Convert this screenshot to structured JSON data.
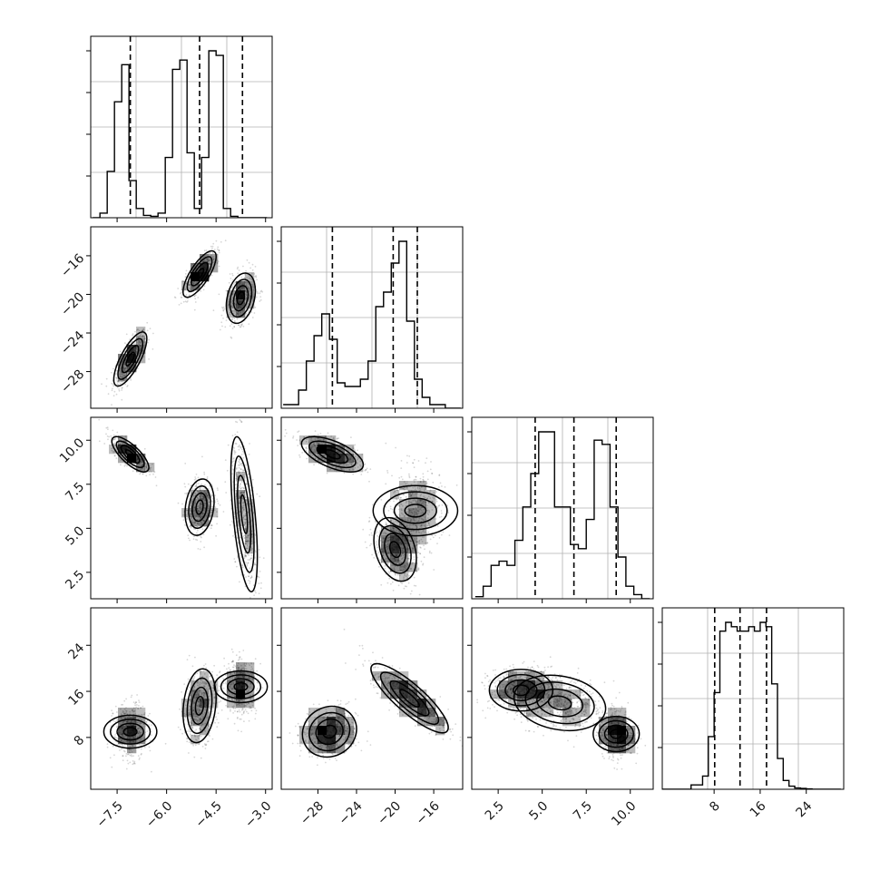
{
  "chart_data": {
    "type": "corner",
    "grid": true,
    "n_params": 4,
    "histograms": [
      {
        "param_index": 0,
        "bins": [
          -8.24,
          -8.02,
          -7.8,
          -7.58,
          -7.36,
          -7.14,
          -6.92,
          -6.7,
          -6.48,
          -6.26,
          -6.04,
          -5.82,
          -5.6,
          -5.38,
          -5.16,
          -4.94,
          -4.72,
          -4.5,
          -4.28,
          -4.06,
          -3.84,
          -3.62,
          -3.4,
          -3.18,
          -2.96
        ],
        "counts": [
          0,
          1,
          10,
          25,
          33,
          8,
          2,
          0.5,
          0.3,
          1,
          13,
          32,
          34,
          14,
          2,
          13,
          36,
          35,
          2,
          0.3,
          0,
          0,
          0,
          0
        ],
        "quantiles": [
          -7.1,
          -5.0,
          -3.7
        ]
      },
      {
        "param_index": 1,
        "bins": [
          -31.6,
          -30.8,
          -30.0,
          -29.2,
          -28.4,
          -27.6,
          -26.8,
          -26.0,
          -25.2,
          -24.4,
          -23.6,
          -22.8,
          -22.0,
          -21.2,
          -20.4,
          -19.6,
          -18.8,
          -18.0,
          -17.2,
          -16.4,
          -15.6,
          -14.8,
          -14.0,
          -13.2
        ],
        "counts": [
          1,
          1,
          5,
          13,
          20,
          26,
          19,
          7,
          6,
          6,
          8,
          13,
          28,
          32,
          40,
          46,
          24,
          8,
          3,
          1,
          1,
          0,
          0
        ],
        "quantiles": [
          -26.5,
          -20.2,
          -17.7
        ]
      },
      {
        "param_index": 2,
        "bins": [
          1.2,
          1.65,
          2.1,
          2.55,
          3.0,
          3.45,
          3.9,
          4.35,
          4.8,
          5.25,
          5.7,
          6.15,
          6.6,
          7.05,
          7.5,
          7.95,
          8.4,
          8.85,
          9.3,
          9.75,
          10.2,
          10.65,
          11.1
        ],
        "counts": [
          0.5,
          3,
          8,
          9,
          8,
          14,
          22,
          30,
          40,
          40,
          22,
          22,
          13,
          12,
          19,
          38,
          37,
          22,
          10,
          3,
          1,
          0
        ],
        "quantiles": [
          4.6,
          6.8,
          9.2
        ]
      },
      {
        "param_index": 3,
        "bins": [
          -1,
          0,
          1,
          2,
          3,
          4,
          5,
          6,
          7,
          8,
          9,
          10,
          11,
          12,
          13,
          14,
          15,
          16,
          17,
          18,
          19,
          20,
          21,
          22,
          23,
          24,
          25,
          26,
          27,
          28,
          29,
          30
        ],
        "counts": [
          0,
          0,
          0,
          0,
          0,
          1,
          1,
          3,
          12,
          22,
          36,
          38,
          37,
          36,
          36,
          37,
          36,
          38,
          37,
          24,
          7,
          2,
          0.7,
          0.3,
          0.2,
          0.1,
          0,
          0,
          0,
          0,
          0
        ],
        "quantiles": [
          8.1,
          12.5,
          17.1
        ]
      }
    ],
    "scatter_2d": [
      {
        "x_param": 0,
        "y_param": 1,
        "clusters": [
          {
            "cx": -7.1,
            "cy": -26.7,
            "sx": 0.25,
            "sy": 1.4,
            "rho": 0.75
          },
          {
            "cx": -5.0,
            "cy": -17.9,
            "sx": 0.25,
            "sy": 1.2,
            "rho": 0.75
          },
          {
            "cx": -3.75,
            "cy": -20.4,
            "sx": 0.22,
            "sy": 1.3,
            "rho": 0.3
          }
        ]
      },
      {
        "x_param": 0,
        "y_param": 2,
        "clusters": [
          {
            "cx": -7.1,
            "cy": 9.2,
            "sx": 0.28,
            "sy": 0.5,
            "rho": -0.75
          },
          {
            "cx": -5.0,
            "cy": 6.2,
            "sx": 0.22,
            "sy": 0.8,
            "rho": 0.2
          },
          {
            "cx": -3.65,
            "cy": 5.8,
            "sx": 0.2,
            "sy": 2.2,
            "rho": -0.55
          }
        ]
      },
      {
        "x_param": 0,
        "y_param": 3,
        "clusters": [
          {
            "cx": -7.1,
            "cy": 9.0,
            "sx": 0.25,
            "sy": 2.3,
            "rho": 0.0
          },
          {
            "cx": -5.0,
            "cy": 13.5,
            "sx": 0.25,
            "sy": 3.2,
            "rho": 0.2
          },
          {
            "cx": -3.75,
            "cy": 16.8,
            "sx": 0.24,
            "sy": 2.3,
            "rho": 0.0
          }
        ]
      },
      {
        "x_param": 1,
        "y_param": 2,
        "clusters": [
          {
            "cx": -26.5,
            "cy": 9.2,
            "sx": 1.6,
            "sy": 0.5,
            "rho": -0.6
          },
          {
            "cx": -17.9,
            "cy": 6.0,
            "sx": 1.3,
            "sy": 1.2,
            "rho": 0.0
          },
          {
            "cx": -20.0,
            "cy": 3.8,
            "sx": 1.1,
            "sy": 0.9,
            "rho": -0.3
          }
        ]
      },
      {
        "x_param": 1,
        "y_param": 3,
        "clusters": [
          {
            "cx": -26.8,
            "cy": 9.0,
            "sx": 1.4,
            "sy": 2.2,
            "rho": 0.1
          },
          {
            "cx": -18.5,
            "cy": 14.8,
            "sx": 2.0,
            "sy": 3.0,
            "rho": -0.85
          }
        ]
      },
      {
        "x_param": 2,
        "y_param": 3,
        "clusters": [
          {
            "cx": 9.2,
            "cy": 8.6,
            "sx": 0.5,
            "sy": 2.0,
            "rho": 0.0
          },
          {
            "cx": 6.0,
            "cy": 14.0,
            "sx": 1.3,
            "sy": 2.4,
            "rho": -0.2
          },
          {
            "cx": 3.8,
            "cy": 16.2,
            "sx": 0.9,
            "sy": 1.8,
            "rho": 0.0
          }
        ]
      }
    ],
    "axes": {
      "param_0": {
        "range": [
          -8.3,
          -2.8
        ],
        "ticks": [
          -7.5,
          -6.0,
          -4.5,
          -3.0
        ],
        "labels": [
          "−7.5",
          "−6.0",
          "−4.5",
          "−3.0"
        ]
      },
      "param_1": {
        "range": [
          -31.8,
          -13.0
        ],
        "ticks": [
          -28,
          -24,
          -20,
          -16
        ],
        "labels": [
          "−28",
          "−24",
          "−20",
          "−16"
        ]
      },
      "param_2": {
        "range": [
          1.0,
          11.3
        ],
        "ticks": [
          2.5,
          5.0,
          7.5,
          10.0
        ],
        "labels": [
          "2.5",
          "5.0",
          "7.5",
          "10.0"
        ]
      },
      "param_3": {
        "range": [
          -1.0,
          30.5
        ],
        "ticks": [
          8,
          16,
          24
        ],
        "labels": [
          "8",
          "16",
          "24"
        ]
      }
    },
    "colors": {
      "line": "#000000",
      "points": "#000000",
      "grid": "#b0b0b0"
    }
  }
}
